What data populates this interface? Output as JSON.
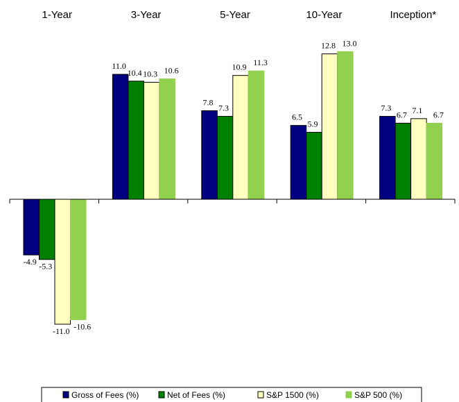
{
  "chart_data": {
    "type": "bar",
    "categories": [
      "1-Year",
      "3-Year",
      "5-Year",
      "10-Year",
      "Inception*"
    ],
    "series": [
      {
        "name": "Gross of Fees (%)",
        "values": [
          -4.9,
          11.0,
          7.8,
          6.5,
          7.3
        ],
        "labels": [
          "-4.9",
          "11.0",
          "7.8",
          "6.5",
          "7.3"
        ],
        "color": "#000080",
        "stroke": "#000000"
      },
      {
        "name": "Net of Fees (%)",
        "values": [
          -5.3,
          10.4,
          7.3,
          5.9,
          6.7
        ],
        "labels": [
          "-5.3",
          "10.4",
          "7.3",
          "5.9",
          "6.7"
        ],
        "color": "#008000",
        "stroke": "#000000"
      },
      {
        "name": "S&P 1500 (%)",
        "values": [
          -11.0,
          10.3,
          10.9,
          12.8,
          7.1
        ],
        "labels": [
          "-11.0",
          "10.3",
          "10.9",
          "12.8",
          "7.1"
        ],
        "color": "#FFFFC0",
        "stroke": "#000000"
      },
      {
        "name": "S&P 500 (%)",
        "values": [
          -10.6,
          10.6,
          11.3,
          13.0,
          6.7
        ],
        "labels": [
          "-10.6",
          "10.6",
          "11.3",
          "13.0",
          "6.7"
        ],
        "color": "#92D050",
        "stroke": "#92D050"
      }
    ],
    "title": "",
    "xlabel": "",
    "ylabel": "",
    "ylim": [
      -11.0,
      13.0
    ],
    "grid": false,
    "legend_position": "bottom"
  }
}
